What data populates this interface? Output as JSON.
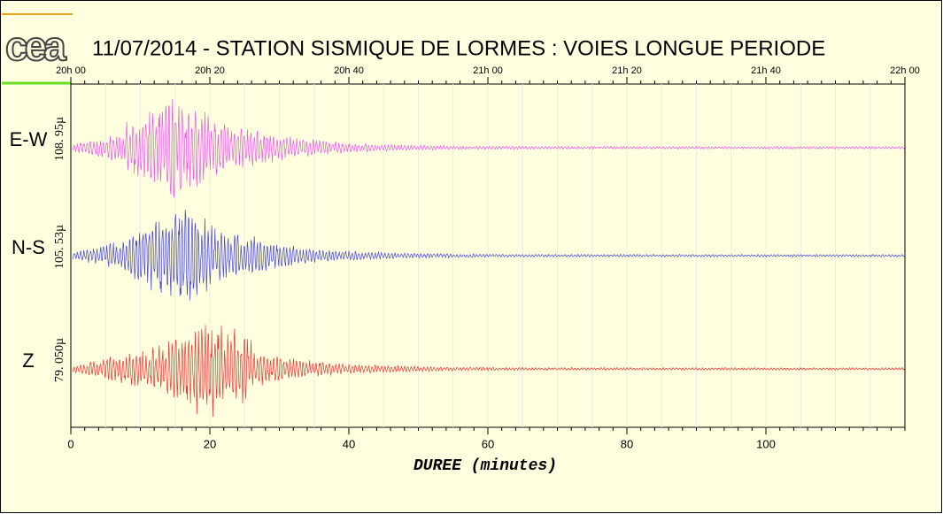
{
  "chart_data": {
    "type": "seismogram",
    "logo": "cea",
    "title": "11/07/2014  -  STATION SISMIQUE DE LORMES : VOIES LONGUE PERIODE",
    "xlabel": "DUREE (minutes)",
    "xlim": [
      0,
      120
    ],
    "xticks": [
      0,
      20,
      40,
      60,
      80,
      100
    ],
    "top_ticks": [
      {
        "value": 0,
        "label": "20h 00"
      },
      {
        "value": 20,
        "label": "20h 20"
      },
      {
        "value": 40,
        "label": "20h 40"
      },
      {
        "value": 60,
        "label": "21h 00"
      },
      {
        "value": 80,
        "label": "21h 20"
      },
      {
        "value": 100,
        "label": "21h 40"
      },
      {
        "value": 120,
        "label": "22h 00"
      }
    ],
    "channels": [
      {
        "name": "E-W",
        "scale": "108. 95µ",
        "color": "#ee55ee"
      },
      {
        "name": "N-S",
        "scale": "105. 53µ",
        "color": "#4444dd"
      },
      {
        "name": "Z",
        "scale": "79. 050µ",
        "color": "#ee3333"
      }
    ]
  }
}
